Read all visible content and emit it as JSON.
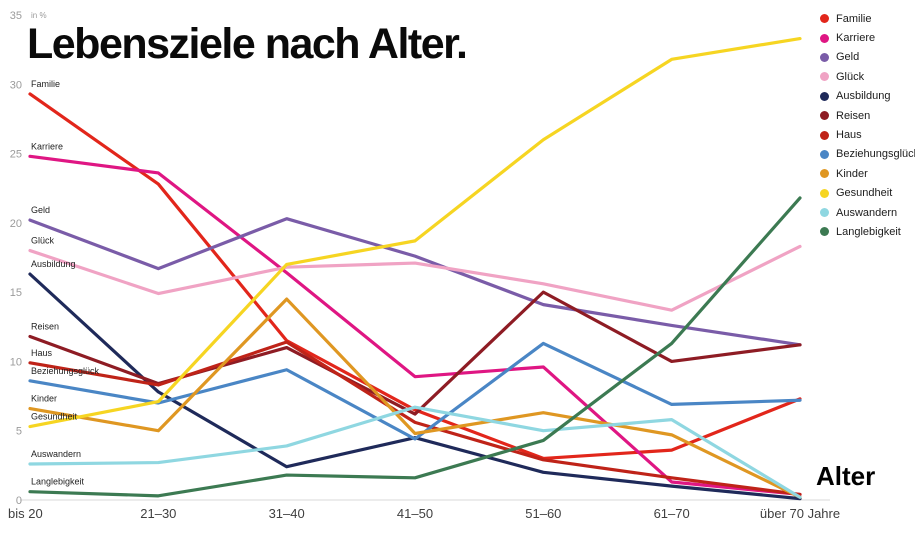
{
  "chart_data": {
    "type": "line",
    "title": "Lebensziele nach Alter.",
    "xlabel": "Alter",
    "ylabel": "in %",
    "ylim": [
      0,
      35
    ],
    "y_ticks": [
      0,
      5,
      10,
      15,
      20,
      25,
      30,
      35
    ],
    "grid": false,
    "legend_position": "right",
    "categories": [
      "bis 20",
      "21–30",
      "31–40",
      "41–50",
      "51–60",
      "61–70",
      "über 70 Jahre"
    ],
    "series": [
      {
        "name": "Familie",
        "color": "#e2261b",
        "values": [
          29.3,
          22.8,
          11.5,
          6.5,
          3.0,
          3.6,
          7.3
        ]
      },
      {
        "name": "Karriere",
        "color": "#df1683",
        "values": [
          24.8,
          23.6,
          16.4,
          8.9,
          9.6,
          1.3,
          0.4
        ]
      },
      {
        "name": "Geld",
        "color": "#7a5ca8",
        "values": [
          20.2,
          16.7,
          20.3,
          17.6,
          14.1,
          12.6,
          11.2
        ]
      },
      {
        "name": "Glück",
        "color": "#f0a3c4",
        "values": [
          18.0,
          14.9,
          16.8,
          17.1,
          15.6,
          13.7,
          18.3
        ]
      },
      {
        "name": "Ausbildung",
        "color": "#1f2a5a",
        "values": [
          16.3,
          7.8,
          2.4,
          4.5,
          2.0,
          1.0,
          0.1
        ]
      },
      {
        "name": "Reisen",
        "color": "#8e1c24",
        "values": [
          11.8,
          8.4,
          11.0,
          6.2,
          15.0,
          10.0,
          11.2
        ]
      },
      {
        "name": "Haus",
        "color": "#bf2318",
        "values": [
          9.9,
          8.3,
          11.4,
          5.6,
          2.9,
          1.6,
          0.4
        ]
      },
      {
        "name": "Beziehungsglück",
        "color": "#4a86c5",
        "values": [
          8.6,
          7.0,
          9.4,
          4.4,
          11.3,
          6.9,
          7.2
        ]
      },
      {
        "name": "Kinder",
        "color": "#df9722",
        "values": [
          6.6,
          5.0,
          14.5,
          4.8,
          6.3,
          4.7,
          0.2
        ]
      },
      {
        "name": "Gesundheit",
        "color": "#f6d522",
        "values": [
          5.3,
          7.1,
          17.0,
          18.7,
          26.0,
          31.8,
          33.3
        ]
      },
      {
        "name": "Auswandern",
        "color": "#8fd7e1",
        "values": [
          2.6,
          2.7,
          3.9,
          6.7,
          5.0,
          5.8,
          0.2
        ]
      },
      {
        "name": "Langlebigkeit",
        "color": "#3c7a52",
        "values": [
          0.6,
          0.3,
          1.8,
          1.6,
          4.3,
          11.3,
          21.8
        ]
      }
    ]
  }
}
